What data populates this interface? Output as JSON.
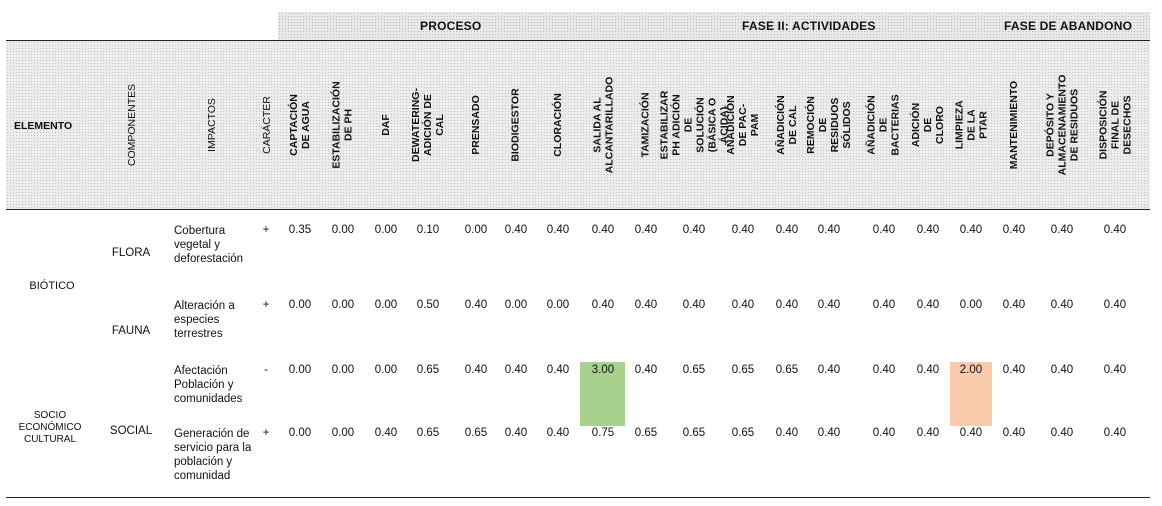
{
  "phases": {
    "proceso": "PROCESO",
    "fase2": "FASE II: ACTIVIDADES",
    "abandono": "FASE DE ABANDONO"
  },
  "headers": {
    "elemento": "ELEMENTO",
    "componentes": "COMPONENTES",
    "impactos": "IMPACTOS",
    "caracter": "CARÁCTER",
    "activities": [
      "CAPTACIÓN DE AGUA",
      "ESTABILIZACIÓN DE PH",
      "DAF",
      "DEWATERING-ADICIÓN DE CAL",
      "PRENSADO",
      "BIODIGESTOR",
      "CLORACIÓN",
      "SALIDA AL ALCANTARILLADO",
      "TAMIZACIÓN",
      "ESTABILIZAR PH ADICIÓN DE SOLUCIÓN (BÁSICA O ÁCIDA)",
      "AÑADICIÓN DE PAC-PAM",
      "AÑADICIÓN DE CAL",
      "REMOCIÓN DE RESIDUOS SÓLIDOS",
      "AÑADICIÓN DE BACTERIAS",
      "ADICIÓN DE CLORO",
      "LIMPIEZA DE LA PTAR",
      "MANTENIMIENTO",
      "DEPÓSITO Y ALMACENAMIENTO DE RESIDUOS",
      "DISPOSICIÓN FINAL DE DESECHOS"
    ]
  },
  "elements": {
    "biotico": "BIÓTICO",
    "socio": "SOCIO ECONÓMICO CULTURAL"
  },
  "components": {
    "flora": "FLORA",
    "fauna": "FAUNA",
    "social": "SOCIAL"
  },
  "rows": [
    {
      "impacto": "Cobertura vegetal y deforestación",
      "caracter": "+",
      "values": [
        "0.35",
        "0.00",
        "0.00",
        "0.10",
        "0.00",
        "0.40",
        "0.40",
        "0.40",
        "0.40",
        "0.40",
        "0.40",
        "0.40",
        "0.40",
        "0.40",
        "0.40",
        "0.40",
        "0.40",
        "0.40",
        "0.40"
      ]
    },
    {
      "impacto": "Alteración a especies terrestres",
      "caracter": "+",
      "values": [
        "0.00",
        "0.00",
        "0.00",
        "0.50",
        "0.40",
        "0.00",
        "0.00",
        "0.40",
        "0.40",
        "0.40",
        "0.40",
        "0.40",
        "0.40",
        "0.40",
        "0.40",
        "0.00",
        "0.40",
        "0.40",
        "0.40"
      ]
    },
    {
      "impacto": "Afectación Población y comunidades",
      "caracter": "-",
      "values": [
        "0.00",
        "0.00",
        "0.00",
        "0.65",
        "0.40",
        "0.40",
        "0.40",
        "3.00",
        "0.40",
        "0.65",
        "0.65",
        "0.65",
        "0.40",
        "0.40",
        "0.40",
        "2.00",
        "0.40",
        "0.40",
        "0.40"
      ]
    },
    {
      "impacto": "Generación de servicio para la población y comunidad",
      "caracter": "+",
      "values": [
        "0.00",
        "0.00",
        "0.40",
        "0.65",
        "0.65",
        "0.40",
        "0.40",
        "0.75",
        "0.65",
        "0.65",
        "0.65",
        "0.40",
        "0.40",
        "0.40",
        "0.40",
        "0.40",
        "0.40",
        "0.40",
        "0.40"
      ]
    }
  ],
  "highlight_colors": {
    "green": "#a9d18e",
    "orange": "#f8cbad"
  }
}
